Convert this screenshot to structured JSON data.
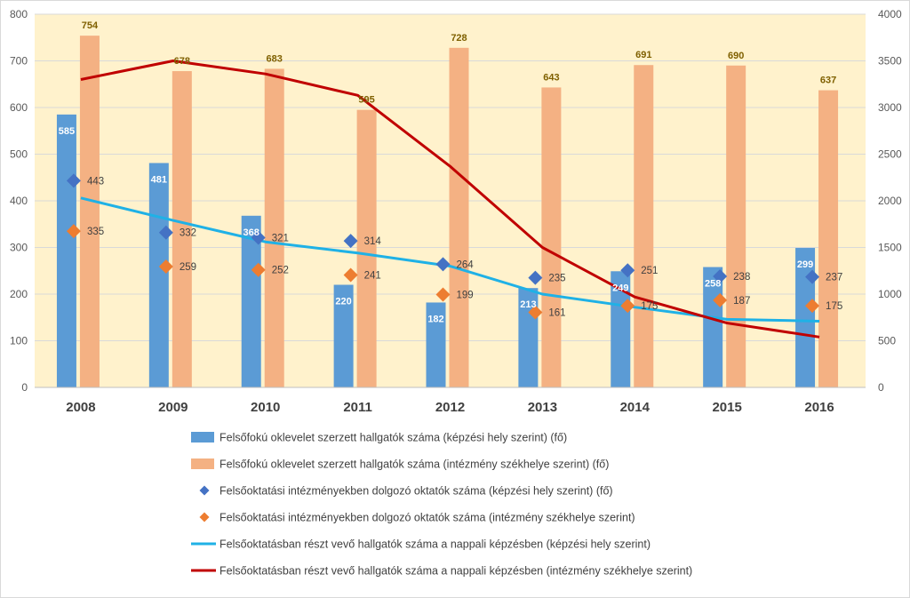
{
  "chart_data": {
    "type": "bar",
    "title": "",
    "categories": [
      "2008",
      "2009",
      "2010",
      "2011",
      "2012",
      "2013",
      "2014",
      "2015",
      "2016"
    ],
    "y_left": {
      "min": 0,
      "max": 800,
      "step": 100,
      "ticks": [
        "0",
        "100",
        "200",
        "300",
        "400",
        "500",
        "600",
        "700",
        "800"
      ]
    },
    "y_right": {
      "min": 0,
      "max": 4000,
      "step": 500,
      "ticks": [
        "0",
        "500",
        "1000",
        "1500",
        "2000",
        "2500",
        "3000",
        "3500",
        "4000"
      ]
    },
    "series": [
      {
        "name": "Felsőfokú oklevelet szerzett hallgatók száma (képzési hely szerint) (fő)",
        "kind": "bar",
        "axis": "left",
        "color": "#5b9bd5",
        "values": [
          585,
          481,
          368,
          220,
          182,
          213,
          249,
          258,
          299
        ],
        "labels": [
          "585",
          "481",
          "368",
          "220",
          "182",
          "213",
          "249",
          "258",
          "299"
        ]
      },
      {
        "name": "Felsőfokú oklevelet szerzett hallgatók száma (intézmény székhelye szerint) (fő)",
        "kind": "bar",
        "axis": "left",
        "color": "#f4b183",
        "values": [
          754,
          678,
          683,
          595,
          728,
          643,
          691,
          690,
          637
        ],
        "labels": [
          "754",
          "678",
          "683",
          "595",
          "728",
          "643",
          "691",
          "690",
          "637"
        ]
      },
      {
        "name": "Felsőoktatási intézményekben dolgozó oktatók száma (képzési hely szerint) (fő)",
        "kind": "marker",
        "axis": "left",
        "color": "#4472c4",
        "values": [
          443,
          332,
          321,
          314,
          264,
          235,
          251,
          238,
          237
        ],
        "labels": [
          "443",
          "332",
          "321",
          "314",
          "264",
          "235",
          "251",
          "238",
          "237"
        ]
      },
      {
        "name": "Felsőoktatási intézményekben dolgozó oktatók száma (intézmény székhelye szerint)",
        "kind": "marker",
        "axis": "left",
        "color": "#ed7d31",
        "values": [
          335,
          259,
          252,
          241,
          199,
          161,
          175,
          187,
          175
        ],
        "labels": [
          "335",
          "259",
          "252",
          "241",
          "199",
          "161",
          "175",
          "187",
          "175"
        ]
      },
      {
        "name": "Felsőoktatásban részt vevő hallgatók száma a nappali képzésben (képzési hely szerint)",
        "kind": "line",
        "axis": "right",
        "color": "#1fb1e6",
        "values": [
          2030,
          1790,
          1560,
          1440,
          1300,
          1000,
          860,
          730,
          710
        ]
      },
      {
        "name": "Felsőoktatásban részt vevő hallgatók száma a nappali képzésben (intézmény székhelye szerint)",
        "kind": "line",
        "axis": "right",
        "color": "#c00000",
        "values": [
          3300,
          3500,
          3360,
          3130,
          2370,
          1500,
          970,
          690,
          540
        ]
      }
    ],
    "legend_position": "bottom",
    "plot_background": "#fff2cc",
    "grid": true
  }
}
